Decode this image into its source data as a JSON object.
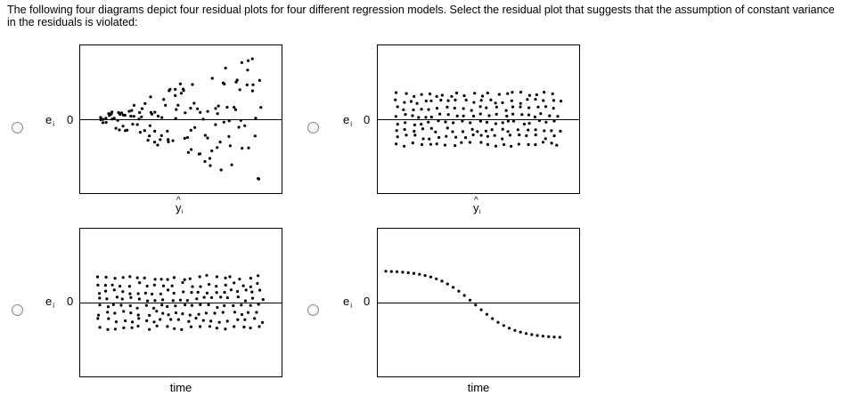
{
  "question": {
    "text": "The following four diagrams depict four residual plots for four different regression models. Select the residual plot that suggests that the assumption of constant variance in the residuals is violated:"
  },
  "common": {
    "ylabel": "e",
    "ylabel_sub": "i",
    "zero_label": "0",
    "yhat_symbol": "y",
    "yhat_hat": "^",
    "yhat_sub": "i",
    "time_label": "time"
  },
  "options": [
    {
      "id": "A",
      "xlabel": "ŷi",
      "pattern": "funnel",
      "selected": false
    },
    {
      "id": "B",
      "xlabel": "ŷi",
      "pattern": "constant-band",
      "selected": false
    },
    {
      "id": "C",
      "xlabel": "time",
      "pattern": "constant-band",
      "selected": false
    },
    {
      "id": "D",
      "xlabel": "time",
      "pattern": "sigmoid-trend",
      "selected": false
    }
  ],
  "colors": {
    "frame": "#000000",
    "zero_line": "#000000",
    "points": "#000000"
  }
}
